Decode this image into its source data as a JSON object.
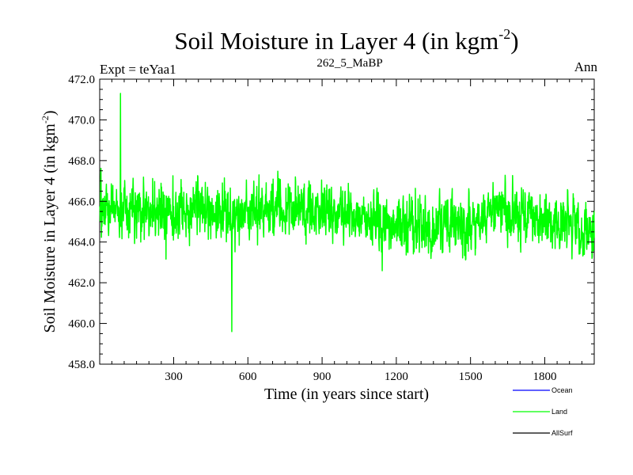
{
  "chart_data": {
    "type": "line",
    "title": "Soil Moisture in Layer 4 (in kgm",
    "title_sup": "-2",
    "title_close": ")",
    "left_label": "Expt = teYaa1",
    "center_label": "262_5_MaBP",
    "right_label": "Ann",
    "xlabel": "Time (in years since start)",
    "ylabel": "Soil Moisture in Layer 4 (in kgm",
    "ylabel_sup": "-2",
    "ylabel_close": ")",
    "xlim": [
      1,
      2000
    ],
    "ylim": [
      458.0,
      472.0
    ],
    "x_ticks": [
      300,
      600,
      900,
      1200,
      1500,
      1800
    ],
    "x_tick_labels": [
      "300",
      "600",
      "900",
      "1200",
      "1500",
      "1800"
    ],
    "y_ticks": [
      458,
      460,
      462,
      464,
      466,
      468,
      470,
      472
    ],
    "y_tick_labels": [
      "458.0",
      "460.0",
      "462.0",
      "464.0",
      "466.0",
      "468.0",
      "470.0",
      "472.0"
    ],
    "series": [
      {
        "name": "Ocean",
        "color": "#0000ff",
        "values": []
      },
      {
        "name": "Land",
        "color": "#00ff00",
        "n_points": 2000,
        "approx_profile": {
          "x": [
            1,
            100,
            200,
            300,
            400,
            500,
            600,
            700,
            800,
            900,
            1000,
            1100,
            1200,
            1300,
            1400,
            1500,
            1600,
            1700,
            1800,
            1900,
            2000
          ],
          "mean": [
            465.6,
            465.8,
            465.4,
            465.3,
            465.9,
            465.2,
            465.4,
            466.0,
            465.7,
            465.6,
            465.2,
            465.0,
            465.0,
            464.6,
            464.9,
            464.8,
            465.5,
            465.4,
            465.2,
            464.9,
            464.6
          ]
        },
        "amplitude": 2.3,
        "max": {
          "x": 85,
          "y": 471.3
        },
        "min": {
          "x": 535,
          "y": 459.6
        }
      },
      {
        "name": "AllSurf",
        "color": "#000000",
        "values": []
      }
    ],
    "legend_position": "bottom-right"
  }
}
